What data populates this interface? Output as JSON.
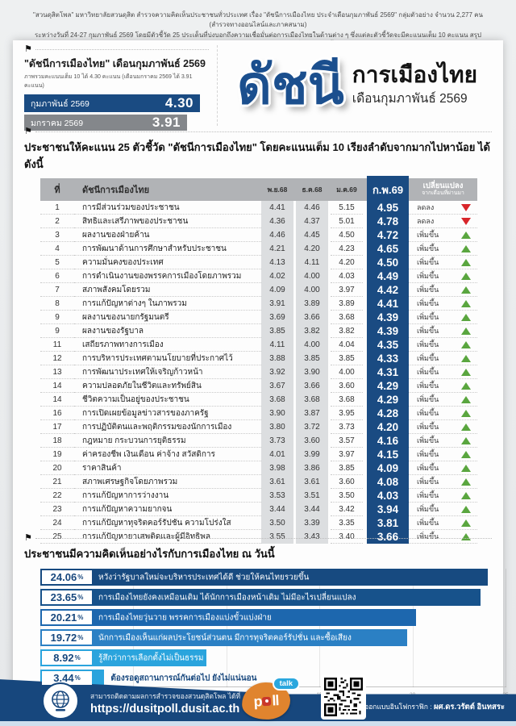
{
  "intro": {
    "line1": "\"สวนดุสิตโพล\" มหาวิทยาลัยสวนดุสิต สำรวจความคิดเห็นประชาชนทั่วประเทศ เรื่อง \"ดัชนีการเมืองไทย ประจำเดือนกุมภาพันธ์ 2569\" กลุ่มตัวอย่าง จำนวน 2,277 คน (สำรวจทางออนไลน์และภาคสนาม)",
    "line2": "ระหว่างวันที่ 24-27 กุมภาพันธ์ 2569 โดยมีตัวชี้วัด 25 ประเด็นที่บ่งบอกถึงความเชื่อมั่นต่อการเมืองไทยในด้านต่าง ๆ ซึ่งแต่ละตัวชี้วัดจะมีคะแนนเต็ม 10 คะแนน สรุปผลเรียงลำดับจากค่าคะแนนสูงสุดไปถึงค่าต่ำสุด ได้ดังนี้"
  },
  "header": {
    "title": "\"ดัชนีการเมืองไทย\" เดือนกุมภาพันธ์ 2569",
    "subtitle": "ภาพรวมคะแนนเต็ม 10 ได้ 4.30 คะแนน (เดือนมกราคม 2569 ได้ 3.91 คะแนน)",
    "bars": [
      {
        "label": "กุมภาพันธ์ 2569",
        "value": "4.30"
      },
      {
        "label": "มกราคม 2569",
        "value": "3.91"
      }
    ],
    "logo": {
      "big": "ดัชนี",
      "line1": "การเมืองไทย",
      "line2": "เดือนกุมภาพันธ์ 2569"
    }
  },
  "table_section": {
    "heading": "ประชาชนให้คะแนน 25 ตัวชี้วัด \"ดัชนีการเมืองไทย\" โดยคะแนนเต็ม 10 เรียงลำดับจากมากไปหาน้อย ได้ดังนี้",
    "columns": {
      "rank": "ที่",
      "name": "ดัชนีการเมืองไทย",
      "m1": "พ.ย.68",
      "m2": "ธ.ค.68",
      "m3": "ม.ค.69",
      "m4": "ก.พ.69",
      "change_line1": "เปลี่ยนแปลง",
      "change_line2": "จากเดือนที่ผ่านมา"
    },
    "rows": [
      {
        "rank": "1",
        "name": "การมีส่วนร่วมของประชาชน",
        "m1": "4.41",
        "m2": "4.46",
        "m3": "5.15",
        "m4": "4.95",
        "change": "ลดลง",
        "dir": "down"
      },
      {
        "rank": "2",
        "name": "สิทธิและเสรีภาพของประชาชน",
        "m1": "4.36",
        "m2": "4.37",
        "m3": "5.01",
        "m4": "4.78",
        "change": "ลดลง",
        "dir": "down"
      },
      {
        "rank": "3",
        "name": "ผลงานของฝ่ายค้าน",
        "m1": "4.46",
        "m2": "4.45",
        "m3": "4.50",
        "m4": "4.72",
        "change": "เพิ่มขึ้น",
        "dir": "up"
      },
      {
        "rank": "4",
        "name": "การพัฒนาด้านการศึกษาสำหรับประชาชน",
        "m1": "4.21",
        "m2": "4.20",
        "m3": "4.23",
        "m4": "4.65",
        "change": "เพิ่มขึ้น",
        "dir": "up"
      },
      {
        "rank": "5",
        "name": "ความมั่นคงของประเทศ",
        "m1": "4.13",
        "m2": "4.11",
        "m3": "4.20",
        "m4": "4.50",
        "change": "เพิ่มขึ้น",
        "dir": "up"
      },
      {
        "rank": "6",
        "name": "การดำเนินงานของพรรคการเมืองโดยภาพรวม",
        "m1": "4.02",
        "m2": "4.00",
        "m3": "4.03",
        "m4": "4.49",
        "change": "เพิ่มขึ้น",
        "dir": "up"
      },
      {
        "rank": "7",
        "name": "สภาพสังคมโดยรวม",
        "m1": "4.09",
        "m2": "4.00",
        "m3": "3.97",
        "m4": "4.42",
        "change": "เพิ่มขึ้น",
        "dir": "up"
      },
      {
        "rank": "8",
        "name": "การแก้ปัญหาต่างๆ ในภาพรวม",
        "m1": "3.91",
        "m2": "3.89",
        "m3": "3.89",
        "m4": "4.41",
        "change": "เพิ่มขึ้น",
        "dir": "up"
      },
      {
        "rank": "9",
        "name": "ผลงานของนายกรัฐมนตรี",
        "m1": "3.69",
        "m2": "3.66",
        "m3": "3.68",
        "m4": "4.39",
        "change": "เพิ่มขึ้น",
        "dir": "up"
      },
      {
        "rank": "9",
        "name": "ผลงานของรัฐบาล",
        "m1": "3.85",
        "m2": "3.82",
        "m3": "3.82",
        "m4": "4.39",
        "change": "เพิ่มขึ้น",
        "dir": "up"
      },
      {
        "rank": "11",
        "name": "เสถียรภาพทางการเมือง",
        "m1": "4.11",
        "m2": "4.00",
        "m3": "4.04",
        "m4": "4.35",
        "change": "เพิ่มขึ้น",
        "dir": "up"
      },
      {
        "rank": "12",
        "name": "การบริหารประเทศตามนโยบายที่ประกาศไว้",
        "m1": "3.88",
        "m2": "3.85",
        "m3": "3.85",
        "m4": "4.33",
        "change": "เพิ่มขึ้น",
        "dir": "up"
      },
      {
        "rank": "13",
        "name": "การพัฒนาประเทศให้เจริญก้าวหน้า",
        "m1": "3.92",
        "m2": "3.90",
        "m3": "4.00",
        "m4": "4.31",
        "change": "เพิ่มขึ้น",
        "dir": "up"
      },
      {
        "rank": "14",
        "name": "ความปลอดภัยในชีวิตและทรัพย์สิน",
        "m1": "3.67",
        "m2": "3.66",
        "m3": "3.60",
        "m4": "4.29",
        "change": "เพิ่มขึ้น",
        "dir": "up"
      },
      {
        "rank": "14",
        "name": "ชีวิตความเป็นอยู่ของประชาชน",
        "m1": "3.68",
        "m2": "3.68",
        "m3": "3.68",
        "m4": "4.29",
        "change": "เพิ่มขึ้น",
        "dir": "up"
      },
      {
        "rank": "16",
        "name": "การเปิดเผยข้อมูลข่าวสารของภาครัฐ",
        "m1": "3.90",
        "m2": "3.87",
        "m3": "3.95",
        "m4": "4.28",
        "change": "เพิ่มขึ้น",
        "dir": "up"
      },
      {
        "rank": "17",
        "name": "การปฏิบัติตนและพฤติกรรมของนักการเมือง",
        "m1": "3.80",
        "m2": "3.72",
        "m3": "3.73",
        "m4": "4.20",
        "change": "เพิ่มขึ้น",
        "dir": "up"
      },
      {
        "rank": "18",
        "name": "กฎหมาย กระบวนการยุติธรรม",
        "m1": "3.73",
        "m2": "3.60",
        "m3": "3.57",
        "m4": "4.16",
        "change": "เพิ่มขึ้น",
        "dir": "up"
      },
      {
        "rank": "19",
        "name": "ค่าครองชีพ เงินเดือน ค่าจ้าง สวัสดิการ",
        "m1": "4.01",
        "m2": "3.99",
        "m3": "3.97",
        "m4": "4.15",
        "change": "เพิ่มขึ้น",
        "dir": "up"
      },
      {
        "rank": "20",
        "name": "ราคาสินค้า",
        "m1": "3.98",
        "m2": "3.86",
        "m3": "3.85",
        "m4": "4.09",
        "change": "เพิ่มขึ้น",
        "dir": "up"
      },
      {
        "rank": "21",
        "name": "สภาพเศรษฐกิจโดยภาพรวม",
        "m1": "3.61",
        "m2": "3.61",
        "m3": "3.60",
        "m4": "4.08",
        "change": "เพิ่มขึ้น",
        "dir": "up"
      },
      {
        "rank": "22",
        "name": "การแก้ปัญหาการว่างงาน",
        "m1": "3.53",
        "m2": "3.51",
        "m3": "3.50",
        "m4": "4.03",
        "change": "เพิ่มขึ้น",
        "dir": "up"
      },
      {
        "rank": "23",
        "name": "การแก้ปัญหาความยากจน",
        "m1": "3.44",
        "m2": "3.44",
        "m3": "3.42",
        "m4": "3.94",
        "change": "เพิ่มขึ้น",
        "dir": "up"
      },
      {
        "rank": "24",
        "name": "การแก้ปัญหาทุจริตคอร์รัปชัน ความโปร่งใส",
        "m1": "3.50",
        "m2": "3.39",
        "m3": "3.35",
        "m4": "3.81",
        "change": "เพิ่มขึ้น",
        "dir": "up"
      },
      {
        "rank": "25",
        "name": "การแก้ปัญหายาเสพติดและผู้มีอิทธิพล",
        "m1": "3.55",
        "m2": "3.43",
        "m3": "3.40",
        "m4": "3.66",
        "change": "เพิ่มขึ้น",
        "dir": "up"
      }
    ]
  },
  "opinion_section": {
    "heading": "ประชาชนมีความคิดเห็นอย่างไรกับการเมืองไทย ณ วันนี้",
    "bars": [
      {
        "pct": "24.06",
        "value": 24.06,
        "label": "หวังว่ารัฐบาลใหม่จะบริหารประเทศได้ดี ช่วยให้คนไทยรวยขึ้น"
      },
      {
        "pct": "23.65",
        "value": 23.65,
        "label": "การเมืองไทยยังคงเหมือนเดิม ได้นักการเมืองหน้าเดิม ไม่มีอะไรเปลี่ยนแปลง"
      },
      {
        "pct": "20.21",
        "value": 20.21,
        "label": "การเมืองไทยวุ่นวาย พรรคการเมืองแบ่งขั้วแบ่งฝ่าย"
      },
      {
        "pct": "19.72",
        "value": 19.72,
        "label": "นักการเมืองเห็นแก่ผลประโยชน์ส่วนตน มีการทุจริตคอร์รัปชั่น และซื้อเสียง"
      },
      {
        "pct": "8.92",
        "value": 8.92,
        "label": "รู้สึกว่าการเลือกตั้งไม่เป็นธรรม"
      },
      {
        "pct": "3.44",
        "value": 3.44,
        "label": "ต้องรอดูสถานการณ์กันต่อไป ยังไม่แน่นอน"
      }
    ],
    "bar_colors": [
      "#174a80",
      "#17528b",
      "#1d67ae",
      "#2b80c4",
      "#2aa4dd",
      "#2aa4dd"
    ],
    "axis_ticks": [
      0,
      5,
      10,
      15,
      20,
      25
    ]
  },
  "chart_data": {
    "type": "bar",
    "orientation": "horizontal",
    "title": "ประชาชนมีความคิดเห็นอย่างไรกับการเมืองไทย ณ วันนี้",
    "categories": [
      "หวังว่ารัฐบาลใหม่จะบริหารประเทศได้ดี ช่วยให้คนไทยรวยขึ้น",
      "การเมืองไทยยังคงเหมือนเดิม ได้นักการเมืองหน้าเดิม ไม่มีอะไรเปลี่ยนแปลง",
      "การเมืองไทยวุ่นวาย พรรคการเมืองแบ่งขั้วแบ่งฝ่าย",
      "นักการเมืองเห็นแก่ผลประโยชน์ส่วนตน มีการทุจริตคอร์รัปชั่น และซื้อเสียง",
      "รู้สึกว่าการเลือกตั้งไม่เป็นธรรม",
      "ต้องรอดูสถานการณ์กันต่อไป ยังไม่แน่นอน"
    ],
    "values": [
      24.06,
      23.65,
      20.21,
      19.72,
      8.92,
      3.44
    ],
    "unit": "%",
    "xlim": [
      0,
      25
    ],
    "x_ticks": [
      0,
      5,
      10,
      15,
      20,
      25
    ],
    "grid": true,
    "legend": false
  },
  "footer": {
    "follow_text": "สามารถติดตามผลการสำรวจของสวนดุสิตโพล ได้ที่",
    "url": "https://dusitpoll.dusit.ac.th",
    "poll_logo": {
      "poll_p": "p",
      "poll_ll": "ll",
      "talk": "talk"
    },
    "credit_label": "ออกแบบอินโฟกราฟิก :",
    "credit_name": "ผศ.ดร.วรัตต์ อินทสระ"
  },
  "colors": {
    "navy": "#1a4b82",
    "header_gray": "#b1b3b6",
    "band_gray": "#dcdee0",
    "secondary_gray": "#84878b",
    "up_green": "#5aa63f",
    "down_red": "#d8252a",
    "footer_navy": "#17477d",
    "footer_strip": "#cfdfee",
    "poll_orange": "#e0842e",
    "talk_blue": "#2aa7de"
  }
}
